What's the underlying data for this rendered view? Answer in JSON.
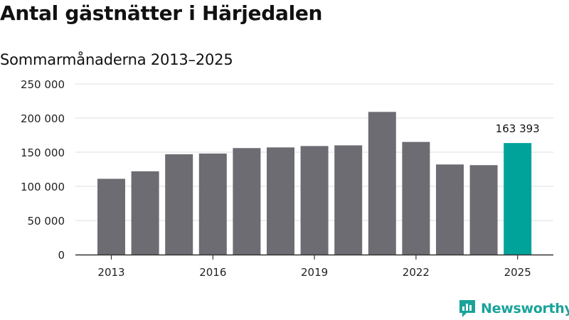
{
  "header": {
    "title": "Antal gästnätter i Härjedalen",
    "subtitle": "Sommarmånaderna 2013–2025"
  },
  "brand": {
    "name": "Newsworthy"
  },
  "colors": {
    "bar": "#6d6c73",
    "highlight": "#00a39a",
    "grid": "#dddddd",
    "axis": "#333333",
    "brand": "#1aa39a"
  },
  "chart_data": {
    "type": "bar",
    "title": "Antal gästnätter i Härjedalen",
    "subtitle": "Sommarmånaderna 2013–2025",
    "xlabel": "",
    "ylabel": "",
    "categories": [
      "2013",
      "2014",
      "2015",
      "2016",
      "2017",
      "2018",
      "2019",
      "2020",
      "2021",
      "2022",
      "2023",
      "2024",
      "2025"
    ],
    "values": [
      111000,
      122000,
      147000,
      148000,
      156000,
      157000,
      159000,
      160000,
      209000,
      165000,
      132000,
      131000,
      163393
    ],
    "x_tick_labels": [
      "2013",
      "2016",
      "2019",
      "2022",
      "2025"
    ],
    "y_ticks": [
      0,
      50000,
      100000,
      150000,
      200000,
      250000
    ],
    "y_tick_labels": [
      "0",
      "50 000",
      "100 000",
      "150 000",
      "200 000",
      "250 000"
    ],
    "ylim": [
      0,
      250000
    ],
    "grid": true,
    "highlight_index": 12,
    "highlight_label": "163 393",
    "legend": "none"
  }
}
